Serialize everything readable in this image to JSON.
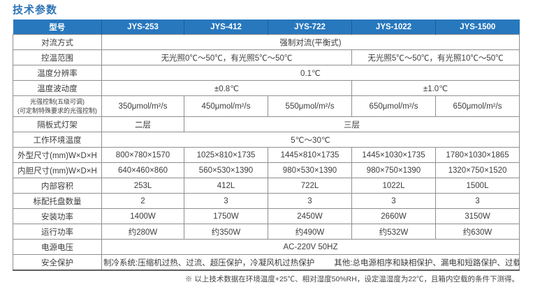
{
  "title": "技术参数",
  "table": {
    "header": {
      "label": "型号",
      "models": [
        "JYS-253",
        "JYS-412",
        "JYS-722",
        "JYS-1022",
        "JYS-1500"
      ]
    },
    "rows": [
      {
        "label": "对流方式",
        "cells": [
          {
            "text": "强制对流(平衡式)",
            "span": 5
          }
        ]
      },
      {
        "label": "控温范围",
        "cells": [
          {
            "text": "无光照0℃～50℃，有光照5℃～50℃",
            "span": 3
          },
          {
            "text": "无光照5℃～50℃，有光照10℃～50℃",
            "span": 2
          }
        ]
      },
      {
        "label": "温度分辨率",
        "cells": [
          {
            "text": "0.1℃",
            "span": 5
          }
        ]
      },
      {
        "label": "温度波动度",
        "cells": [
          {
            "text": "±0.8℃",
            "span": 3
          },
          {
            "text": "±1.0℃",
            "span": 2
          }
        ]
      },
      {
        "label": "光强控制(五级可调)",
        "label_line2": "(可定制特殊要求的光强控制)",
        "small_label": true,
        "cells": [
          {
            "text": "350μmol/m²/s",
            "span": 1
          },
          {
            "text": "450μmol/m²/s",
            "span": 1
          },
          {
            "text": "550μmol/m²/s",
            "span": 1
          },
          {
            "text": "650μmol/m²/s",
            "span": 1
          },
          {
            "text": "650μmol/m²/s",
            "span": 1
          }
        ]
      },
      {
        "label": "隔板式灯架",
        "cells": [
          {
            "text": "二层",
            "span": 1
          },
          {
            "text": "三层",
            "span": 4
          }
        ]
      },
      {
        "label": "工作环境温度",
        "cells": [
          {
            "text": "5℃～30℃",
            "span": 5
          }
        ]
      },
      {
        "label": "外型尺寸(mm)W×D×H",
        "cells": [
          {
            "text": "800×780×1570",
            "span": 1
          },
          {
            "text": "1025×810×1735",
            "span": 1
          },
          {
            "text": "1445×810×1735",
            "span": 1
          },
          {
            "text": "1445×1030×1735",
            "span": 1
          },
          {
            "text": "1780×1030×1865",
            "span": 1
          }
        ]
      },
      {
        "label": "内胆尺寸(mm)W×D×H",
        "cells": [
          {
            "text": "640×460×860",
            "span": 1
          },
          {
            "text": "560×530×1390",
            "span": 1
          },
          {
            "text": "980×530×1390",
            "span": 1
          },
          {
            "text": "980×750×1390",
            "span": 1
          },
          {
            "text": "1320×750×1520",
            "span": 1
          }
        ]
      },
      {
        "label": "内部容积",
        "cells": [
          {
            "text": "253L",
            "span": 1
          },
          {
            "text": "412L",
            "span": 1
          },
          {
            "text": "722L",
            "span": 1
          },
          {
            "text": "1022L",
            "span": 1
          },
          {
            "text": "1500L",
            "span": 1
          }
        ]
      },
      {
        "label": "标配托盘数量",
        "cells": [
          {
            "text": "2",
            "span": 1
          },
          {
            "text": "3",
            "span": 1
          },
          {
            "text": "3",
            "span": 1
          },
          {
            "text": "3",
            "span": 1
          },
          {
            "text": "3",
            "span": 1
          }
        ]
      },
      {
        "label": "安装功率",
        "cells": [
          {
            "text": "1400W",
            "span": 1
          },
          {
            "text": "1750W",
            "span": 1
          },
          {
            "text": "2450W",
            "span": 1
          },
          {
            "text": "2660W",
            "span": 1
          },
          {
            "text": "3150W",
            "span": 1
          }
        ]
      },
      {
        "label": "运行功率",
        "cells": [
          {
            "text": "约280W",
            "span": 1
          },
          {
            "text": "约350W",
            "span": 1
          },
          {
            "text": "约490W",
            "span": 1
          },
          {
            "text": "约532W",
            "span": 1
          },
          {
            "text": "约630W",
            "span": 1
          }
        ]
      },
      {
        "label": "电源电压",
        "cells": [
          {
            "text": "AC-220V 50HZ",
            "span": 5
          }
        ]
      },
      {
        "label": "安全保护",
        "cells": [
          {
            "text": "制冷系统:压缩机过热、过流、超压保护，冷凝风机过热保护",
            "text2": "其他:总电源相序和缺相保护、漏电和短路保护、过载保护",
            "span": 5
          }
        ]
      }
    ]
  },
  "footer": {
    "note": "※ 以上技术数据在环境温度+25℃、相对湿度50%RH，设定温湿度为22℃，且箱内空载的条件下测得。"
  },
  "colors": {
    "header_blue": "#2878BE",
    "title_blue": "#2E74B5",
    "header_divider_blue": "#1C5E9B",
    "grid_gray": "#8F8F8F"
  }
}
